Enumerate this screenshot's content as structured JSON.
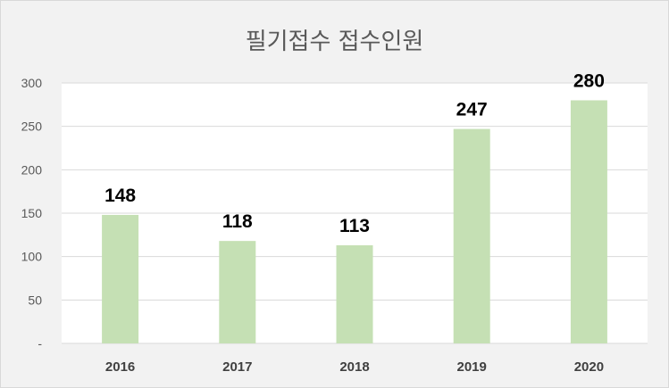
{
  "chart_data": {
    "type": "bar",
    "title": "필기접수 접수인원",
    "xlabel": "",
    "ylabel": "",
    "categories": [
      "2016",
      "2017",
      "2018",
      "2019",
      "2020"
    ],
    "values": [
      148,
      118,
      113,
      247,
      280
    ],
    "data_labels": [
      "148",
      "118",
      "113",
      "247",
      "280"
    ],
    "ylim": [
      0,
      300
    ],
    "yticks": [
      0,
      50,
      100,
      150,
      200,
      250,
      300
    ],
    "ytick_labels": [
      "-",
      "50",
      "100",
      "150",
      "200",
      "250",
      "300"
    ],
    "grid": true,
    "legend": "none",
    "colors": {
      "bar": "#c5e0b4",
      "plot_background": "#ffffff",
      "chart_background": "#f2f2f2",
      "gridline": "#d9d9d9"
    }
  }
}
